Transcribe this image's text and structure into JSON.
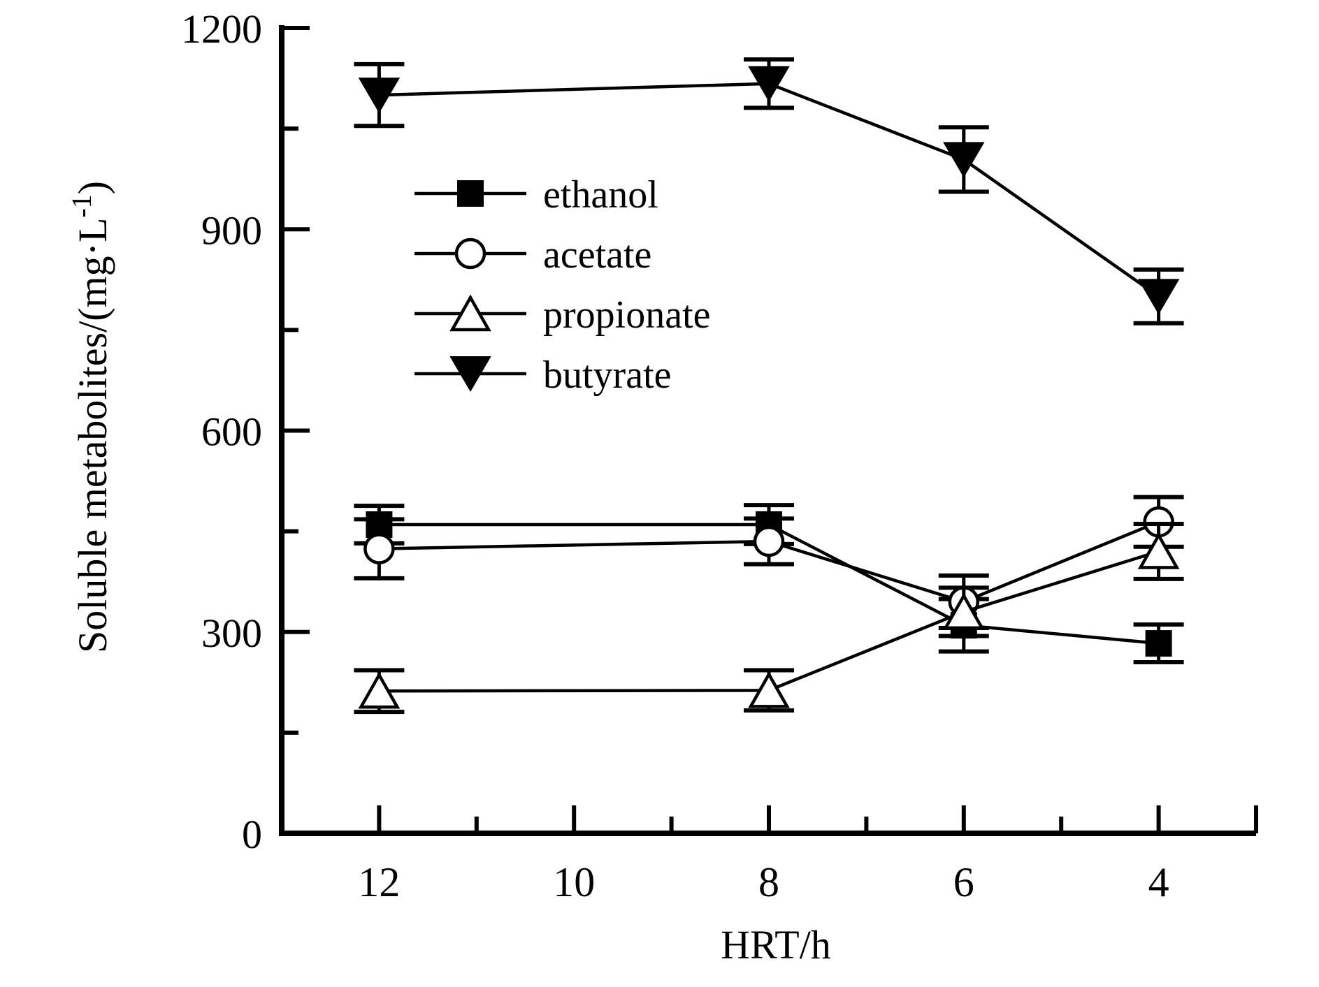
{
  "colors": {
    "foreground": "#000000",
    "background": "#ffffff"
  },
  "chart_data": {
    "type": "line",
    "title": "",
    "xlabel": "HRT/h",
    "ylabel": "Soluble metabolites/(mg·L⁻¹)",
    "ylabel_parts": {
      "base": "Soluble metabolites/(mg·L",
      "sup": "-1",
      "tail": ")"
    },
    "x": [
      12,
      8,
      6,
      4
    ],
    "x_axis": {
      "ticks": [
        12,
        10,
        8,
        6,
        4
      ],
      "tick_labels": [
        "12",
        "10",
        "8",
        "6",
        "4"
      ],
      "minor_ticks": [
        11,
        9,
        7,
        5
      ],
      "end_tick": 3,
      "range": [
        13,
        3
      ],
      "reversed": true
    },
    "y_axis": {
      "ticks": [
        0,
        300,
        600,
        900,
        1200
      ],
      "tick_labels": [
        "0",
        "300",
        "600",
        "900",
        "1200"
      ],
      "minor_ticks": [
        150,
        450,
        750,
        1050
      ],
      "range": [
        0,
        1200
      ]
    },
    "grid": false,
    "legend_position": "upper-left-inside",
    "series": [
      {
        "name": "ethanol",
        "marker": "filled-square",
        "values": [
          460,
          460,
          310,
          283
        ],
        "errors": [
          28,
          29,
          39,
          28
        ]
      },
      {
        "name": "acetate",
        "marker": "open-circle",
        "values": [
          424,
          435,
          345,
          464
        ],
        "errors": [
          44,
          34,
          39,
          37
        ]
      },
      {
        "name": "propionate",
        "marker": "open-triangle-up",
        "values": [
          212,
          213,
          330,
          420
        ],
        "errors": [
          31,
          30,
          36,
          41
        ]
      },
      {
        "name": "butyrate",
        "marker": "filled-triangle-down",
        "values": [
          1100,
          1117,
          1004,
          800
        ],
        "errors": [
          46,
          36,
          48,
          40
        ]
      }
    ]
  }
}
